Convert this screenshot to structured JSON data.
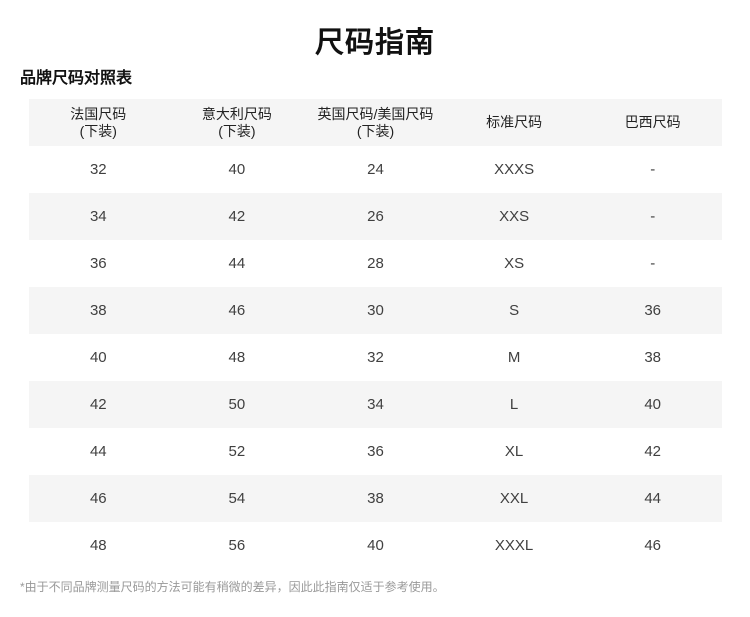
{
  "page": {
    "title": "尺码指南",
    "subtitle": "品牌尺码对照表",
    "footnote": "*由于不同品牌测量尺码的方法可能有稍微的差异，因此此指南仅适于参考使用。"
  },
  "size_table": {
    "columns": [
      {
        "key": "fr-size",
        "label": "法国尺码",
        "sublabel": "(下装)"
      },
      {
        "key": "it-size",
        "label": "意大利尺码",
        "sublabel": "(下装)"
      },
      {
        "key": "uk-us-size",
        "label": "英国尺码/美国尺码",
        "sublabel": "(下装)"
      },
      {
        "key": "standard-size",
        "label": "标准尺码",
        "sublabel": ""
      },
      {
        "key": "br-size",
        "label": "巴西尺码",
        "sublabel": ""
      }
    ],
    "rows": [
      [
        "32",
        "40",
        "24",
        "XXXS",
        "-"
      ],
      [
        "34",
        "42",
        "26",
        "XXS",
        "-"
      ],
      [
        "36",
        "44",
        "28",
        "XS",
        "-"
      ],
      [
        "38",
        "46",
        "30",
        "S",
        "36"
      ],
      [
        "40",
        "48",
        "32",
        "M",
        "38"
      ],
      [
        "42",
        "50",
        "34",
        "L",
        "40"
      ],
      [
        "44",
        "52",
        "36",
        "XL",
        "42"
      ],
      [
        "46",
        "54",
        "38",
        "XXL",
        "44"
      ],
      [
        "48",
        "56",
        "40",
        "XXXL",
        "46"
      ]
    ]
  },
  "colors": {
    "alt_row_bg": "#f5f5f5",
    "title_text": "#111111",
    "header_text": "#222222",
    "cell_text": "#404040",
    "footnote_text": "#999999"
  }
}
